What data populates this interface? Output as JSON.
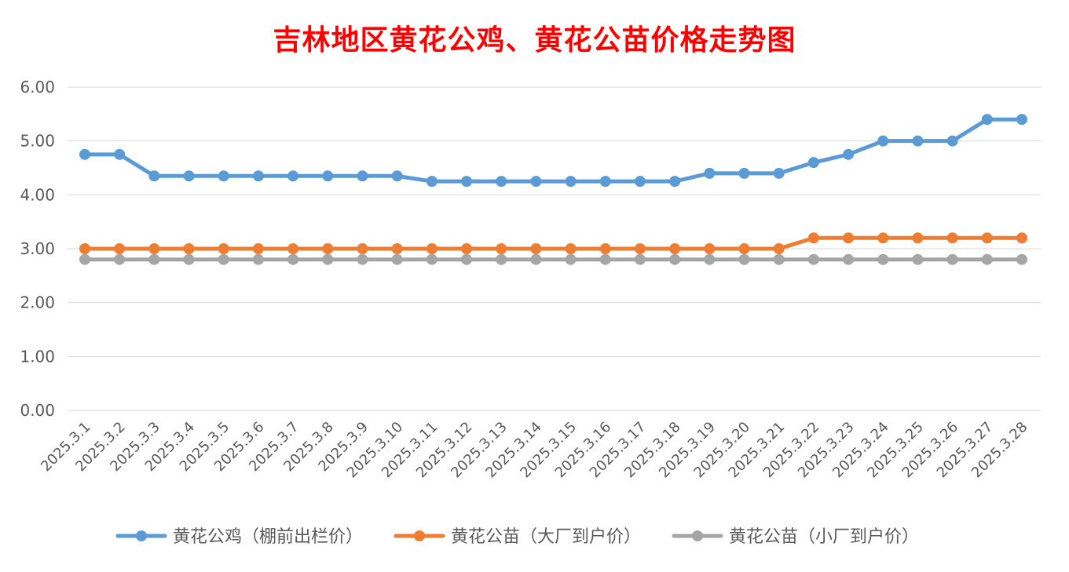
{
  "chart_data": {
    "type": "line",
    "title": "吉林地区黄花公鸡、黄花公苗价格走势图",
    "xlabel": "",
    "ylabel": "",
    "ylim": [
      0,
      6
    ],
    "yticks": [
      "0.00",
      "1.00",
      "2.00",
      "3.00",
      "4.00",
      "5.00",
      "6.00"
    ],
    "grid": true,
    "legend_position": "bottom",
    "categories": [
      "2025.3.1",
      "2025.3.2",
      "2025.3.3",
      "2025.3.4",
      "2025.3.5",
      "2025.3.6",
      "2025.3.7",
      "2025.3.8",
      "2025.3.9",
      "2025.3.10",
      "2025.3.11",
      "2025.3.12",
      "2025.3.13",
      "2025.3.14",
      "2025.3.15",
      "2025.3.16",
      "2025.3.17",
      "2025.3.18",
      "2025.3.19",
      "2025.3.20",
      "2025.3.21",
      "2025.3.22",
      "2025.3.23",
      "2025.3.24",
      "2025.3.25",
      "2025.3.26",
      "2025.3.27",
      "2025.3.28"
    ],
    "series": [
      {
        "name": "黄花公鸡（棚前出栏价）",
        "color": "#5b9bd5",
        "values": [
          4.75,
          4.75,
          4.35,
          4.35,
          4.35,
          4.35,
          4.35,
          4.35,
          4.35,
          4.35,
          4.25,
          4.25,
          4.25,
          4.25,
          4.25,
          4.25,
          4.25,
          4.25,
          4.4,
          4.4,
          4.4,
          4.6,
          4.75,
          5.0,
          5.0,
          5.0,
          5.4,
          5.4
        ]
      },
      {
        "name": "黄花公苗（大厂到户价）",
        "color": "#ed7d31",
        "values": [
          3.0,
          3.0,
          3.0,
          3.0,
          3.0,
          3.0,
          3.0,
          3.0,
          3.0,
          3.0,
          3.0,
          3.0,
          3.0,
          3.0,
          3.0,
          3.0,
          3.0,
          3.0,
          3.0,
          3.0,
          3.0,
          3.2,
          3.2,
          3.2,
          3.2,
          3.2,
          3.2,
          3.2
        ]
      },
      {
        "name": "黄花公苗（小厂到户价）",
        "color": "#a5a5a5",
        "values": [
          2.8,
          2.8,
          2.8,
          2.8,
          2.8,
          2.8,
          2.8,
          2.8,
          2.8,
          2.8,
          2.8,
          2.8,
          2.8,
          2.8,
          2.8,
          2.8,
          2.8,
          2.8,
          2.8,
          2.8,
          2.8,
          2.8,
          2.8,
          2.8,
          2.8,
          2.8,
          2.8,
          2.8
        ]
      }
    ]
  }
}
